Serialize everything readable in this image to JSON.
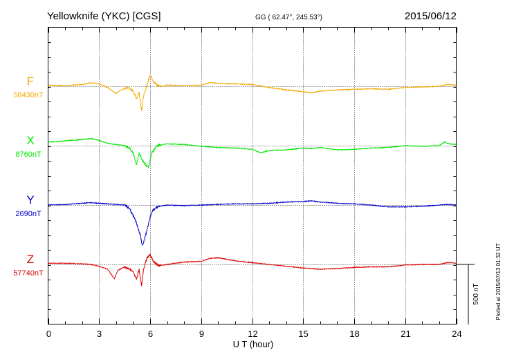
{
  "header": {
    "station": "Yellowknife (YKC)  [CGS]",
    "coords": "GG ( 62.47°, 245.53°)",
    "date": "2015/06/12"
  },
  "footer": {
    "plotted": "Plotted at 2015/07/13 01:32 UT"
  },
  "chart_data": {
    "type": "line",
    "title": "Yellowknife (YKC)  [CGS]",
    "xlabel": "U T (hour)",
    "xlim": [
      0,
      24
    ],
    "xticks": [
      0,
      3,
      6,
      9,
      12,
      15,
      18,
      21,
      24
    ],
    "scale_bar_label": "500 nT",
    "scale_bar_nT": 500,
    "grid": "dotted vertical lines every 3 hours; dotted baseline per component",
    "offset_unit": "nT",
    "series": [
      {
        "name": "F",
        "baseline_label": "58430nT",
        "baseline_nT": 58430,
        "color": "#f5a800",
        "points": [
          [
            0,
            58440
          ],
          [
            1,
            58435
          ],
          [
            2,
            58445
          ],
          [
            2.5,
            58460
          ],
          [
            3,
            58450
          ],
          [
            3.5,
            58420
          ],
          [
            4,
            58370
          ],
          [
            4.3,
            58400
          ],
          [
            4.7,
            58420
          ],
          [
            5,
            58390
          ],
          [
            5.2,
            58330
          ],
          [
            5.35,
            58380
          ],
          [
            5.5,
            58230
          ],
          [
            5.6,
            58340
          ],
          [
            5.75,
            58410
          ],
          [
            5.9,
            58480
          ],
          [
            6,
            58530
          ],
          [
            6.2,
            58470
          ],
          [
            6.4,
            58440
          ],
          [
            6.7,
            58430
          ],
          [
            7,
            58440
          ],
          [
            8,
            58435
          ],
          [
            9,
            58440
          ],
          [
            9.5,
            58460
          ],
          [
            10,
            58455
          ],
          [
            11,
            58450
          ],
          [
            12,
            58445
          ],
          [
            13,
            58420
          ],
          [
            14,
            58400
          ],
          [
            15,
            58385
          ],
          [
            15.5,
            58375
          ],
          [
            16,
            58390
          ],
          [
            16.5,
            58395
          ],
          [
            17,
            58400
          ],
          [
            18,
            58405
          ],
          [
            19,
            58410
          ],
          [
            20,
            58405
          ],
          [
            21,
            58420
          ],
          [
            22,
            58425
          ],
          [
            23,
            58430
          ],
          [
            23.5,
            58445
          ],
          [
            24,
            58440
          ]
        ]
      },
      {
        "name": "X",
        "baseline_label": "8760nT",
        "baseline_nT": 8760,
        "color": "#00e800",
        "points": [
          [
            0,
            8790
          ],
          [
            1,
            8800
          ],
          [
            2,
            8810
          ],
          [
            2.5,
            8820
          ],
          [
            3,
            8805
          ],
          [
            3.5,
            8780
          ],
          [
            4,
            8770
          ],
          [
            4.5,
            8760
          ],
          [
            4.8,
            8740
          ],
          [
            5,
            8700
          ],
          [
            5.2,
            8600
          ],
          [
            5.35,
            8700
          ],
          [
            5.5,
            8650
          ],
          [
            5.7,
            8610
          ],
          [
            5.9,
            8580
          ],
          [
            6.1,
            8700
          ],
          [
            6.4,
            8760
          ],
          [
            7,
            8775
          ],
          [
            8,
            8770
          ],
          [
            9,
            8755
          ],
          [
            10,
            8745
          ],
          [
            11,
            8740
          ],
          [
            12,
            8730
          ],
          [
            12.5,
            8700
          ],
          [
            13,
            8720
          ],
          [
            14,
            8725
          ],
          [
            15,
            8740
          ],
          [
            15.5,
            8735
          ],
          [
            16,
            8745
          ],
          [
            16.5,
            8735
          ],
          [
            17,
            8725
          ],
          [
            18,
            8730
          ],
          [
            19,
            8740
          ],
          [
            20,
            8745
          ],
          [
            21,
            8760
          ],
          [
            22,
            8755
          ],
          [
            23,
            8760
          ],
          [
            23.3,
            8790
          ],
          [
            23.6,
            8775
          ],
          [
            24,
            8770
          ]
        ]
      },
      {
        "name": "Y",
        "baseline_label": "2690nT",
        "baseline_nT": 2690,
        "color": "#0000c8",
        "points": [
          [
            0,
            2690
          ],
          [
            1,
            2695
          ],
          [
            2,
            2705
          ],
          [
            2.5,
            2710
          ],
          [
            3,
            2705
          ],
          [
            3.5,
            2700
          ],
          [
            4,
            2695
          ],
          [
            4.5,
            2690
          ],
          [
            4.8,
            2660
          ],
          [
            5,
            2600
          ],
          [
            5.2,
            2540
          ],
          [
            5.4,
            2450
          ],
          [
            5.55,
            2350
          ],
          [
            5.7,
            2420
          ],
          [
            5.9,
            2530
          ],
          [
            6.1,
            2640
          ],
          [
            6.5,
            2680
          ],
          [
            7,
            2690
          ],
          [
            8,
            2685
          ],
          [
            9,
            2690
          ],
          [
            10,
            2695
          ],
          [
            11,
            2700
          ],
          [
            12,
            2700
          ],
          [
            13,
            2705
          ],
          [
            14,
            2715
          ],
          [
            15,
            2720
          ],
          [
            15.5,
            2725
          ],
          [
            16,
            2715
          ],
          [
            17,
            2705
          ],
          [
            18,
            2700
          ],
          [
            19,
            2690
          ],
          [
            20,
            2675
          ],
          [
            21,
            2675
          ],
          [
            22,
            2680
          ],
          [
            23,
            2690
          ],
          [
            23.5,
            2695
          ],
          [
            24,
            2690
          ]
        ]
      },
      {
        "name": "Z",
        "baseline_label": "57740nT",
        "baseline_nT": 57740,
        "color": "#e00000",
        "points": [
          [
            0,
            57750
          ],
          [
            1,
            57750
          ],
          [
            2,
            57745
          ],
          [
            2.5,
            57740
          ],
          [
            3,
            57725
          ],
          [
            3.5,
            57700
          ],
          [
            3.9,
            57620
          ],
          [
            4.1,
            57690
          ],
          [
            4.5,
            57720
          ],
          [
            4.8,
            57700
          ],
          [
            5,
            57680
          ],
          [
            5.2,
            57620
          ],
          [
            5.35,
            57700
          ],
          [
            5.5,
            57560
          ],
          [
            5.6,
            57690
          ],
          [
            5.8,
            57790
          ],
          [
            6,
            57820
          ],
          [
            6.2,
            57760
          ],
          [
            6.5,
            57730
          ],
          [
            7,
            57740
          ],
          [
            8,
            57760
          ],
          [
            9,
            57765
          ],
          [
            9.5,
            57790
          ],
          [
            10,
            57795
          ],
          [
            11,
            57770
          ],
          [
            12,
            57755
          ],
          [
            13,
            57740
          ],
          [
            14,
            57725
          ],
          [
            15,
            57710
          ],
          [
            16,
            57700
          ],
          [
            17,
            57705
          ],
          [
            18,
            57715
          ],
          [
            19,
            57720
          ],
          [
            20,
            57720
          ],
          [
            21,
            57735
          ],
          [
            22,
            57740
          ],
          [
            23,
            57740
          ],
          [
            23.5,
            57755
          ],
          [
            24,
            57750
          ]
        ]
      }
    ]
  }
}
